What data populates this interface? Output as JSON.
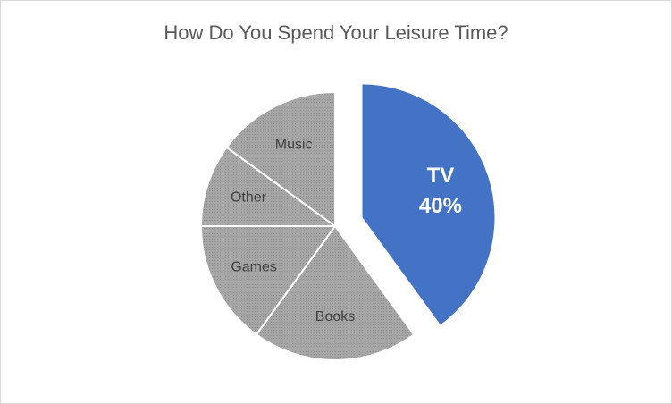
{
  "chart_data": {
    "type": "pie",
    "title": "How Do You Spend Your Leisure Time?",
    "categories": [
      "TV",
      "Books",
      "Games",
      "Other",
      "Music"
    ],
    "values": [
      40,
      20,
      15,
      10,
      15
    ],
    "value_labels": [
      "40%",
      null,
      null,
      null,
      null
    ],
    "colors": [
      "#4472c4",
      "#a6a6a6",
      "#a6a6a6",
      "#a6a6a6",
      "#a6a6a6"
    ],
    "exploded": [
      true,
      false,
      false,
      false,
      false
    ]
  }
}
